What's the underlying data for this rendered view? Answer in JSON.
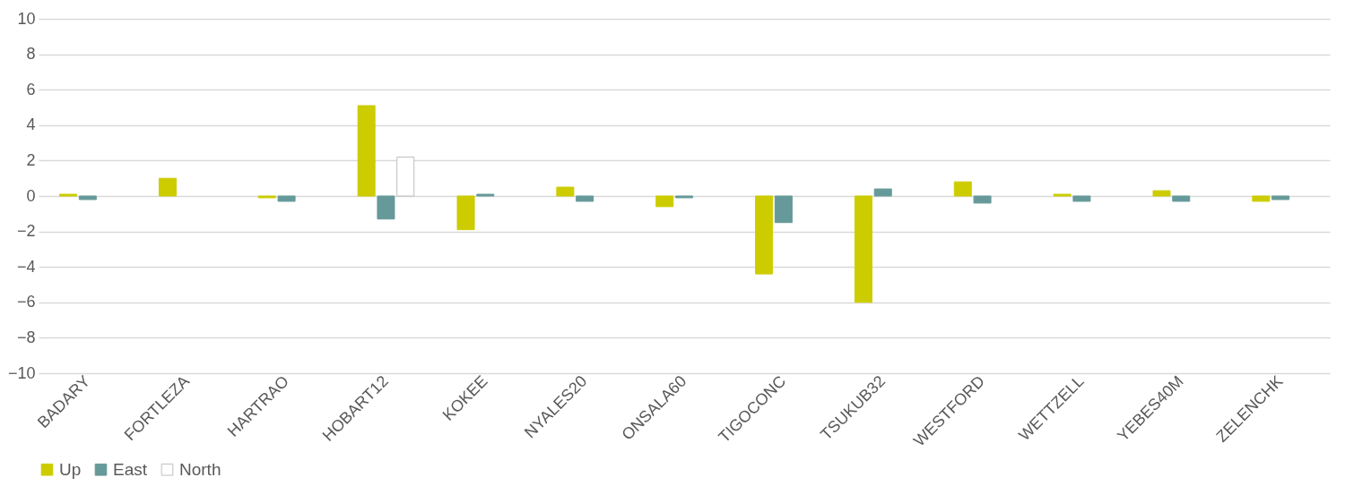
{
  "chart_data": {
    "type": "bar",
    "categories": [
      "BADARY",
      "FORTLEZA",
      "HARTRAO",
      "HOBART12",
      "KOKEE",
      "NYALES20",
      "ONSALA60",
      "TIGOCONC",
      "TSUKUB32",
      "WESTFORD",
      "WETTZELL",
      "YEBES40M",
      "ZELENCHK"
    ],
    "series": [
      {
        "name": "Up",
        "color": "#cccc00",
        "values": [
          0.1,
          1.0,
          -0.1,
          5.1,
          -1.9,
          0.5,
          -0.6,
          -4.4,
          -6.0,
          0.8,
          0.1,
          0.3,
          -0.3
        ]
      },
      {
        "name": "East",
        "color": "#669999",
        "values": [
          -0.2,
          null,
          -0.3,
          -1.3,
          0.1,
          -0.3,
          -0.1,
          -1.5,
          0.4,
          -0.4,
          -0.3,
          -0.3,
          -0.2
        ]
      },
      {
        "name": "North",
        "color": "#ffffff",
        "values": [
          null,
          null,
          null,
          2.2,
          null,
          null,
          null,
          null,
          null,
          null,
          null,
          null,
          null
        ]
      }
    ],
    "ylim": [
      -10,
      10
    ],
    "yticks": [
      -10,
      -8,
      -6,
      -4,
      -2,
      0,
      2,
      4,
      6,
      8,
      10
    ],
    "grid": "y",
    "legend": "bottom"
  }
}
